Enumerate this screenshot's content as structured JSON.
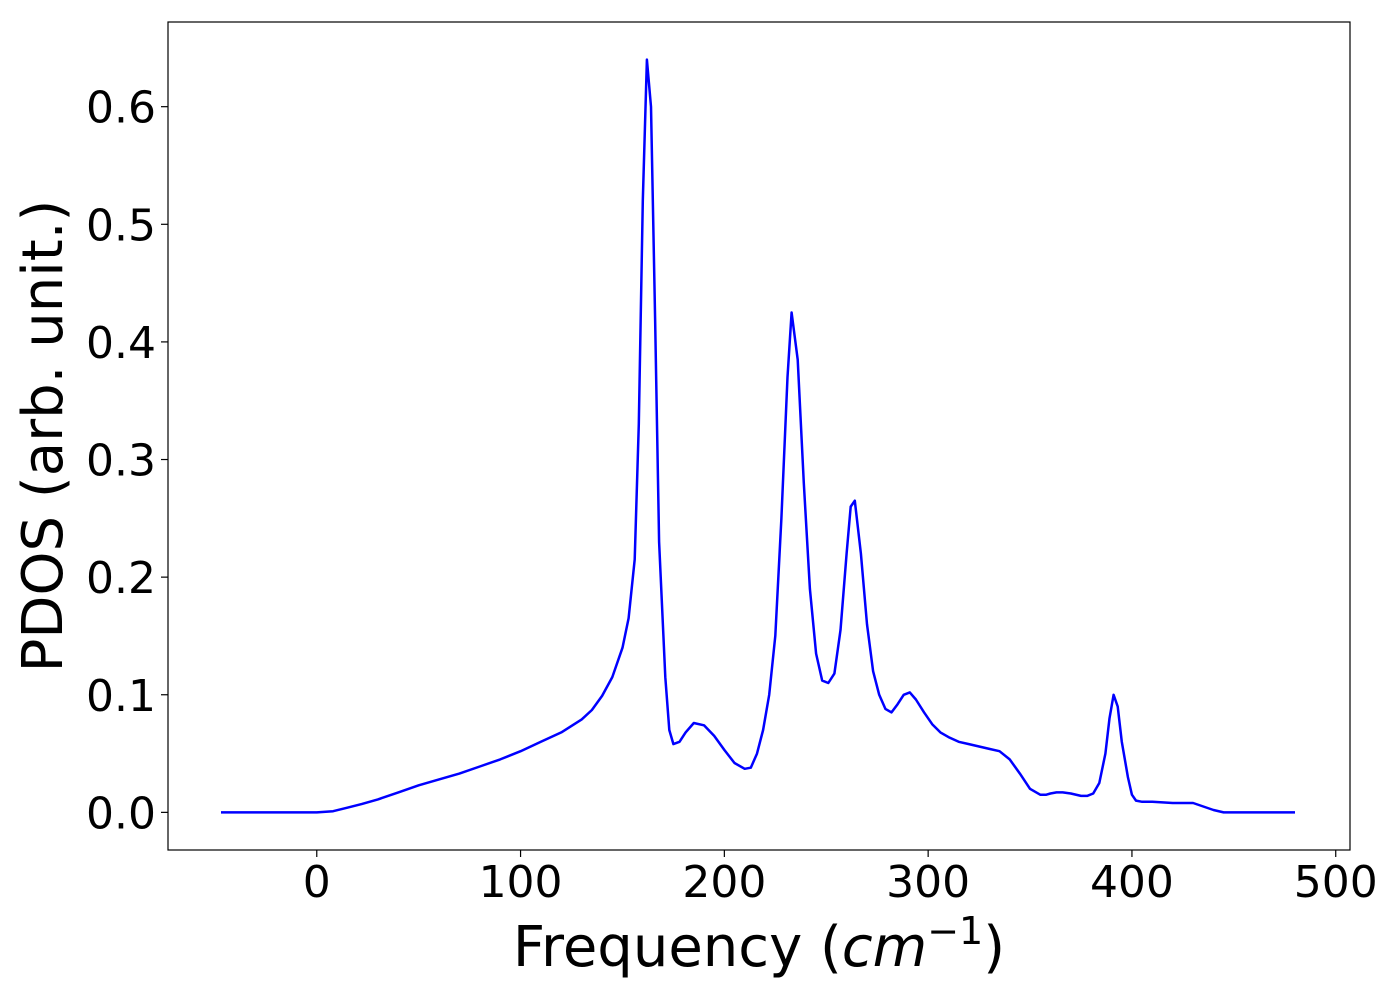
{
  "chart_data": {
    "type": "line",
    "title": "",
    "xlabel_prefix": "Frequency (",
    "xlabel_unit": "cm",
    "xlabel_exp": "−1",
    "xlabel_suffix": ")",
    "ylabel": "PDOS (arb. unit.)",
    "xlim": [
      -73,
      507
    ],
    "ylim": [
      -0.032,
      0.672
    ],
    "xticks": [
      0,
      100,
      200,
      300,
      400,
      500
    ],
    "xtick_labels": [
      "0",
      "100",
      "200",
      "300",
      "400",
      "500"
    ],
    "yticks": [
      0.0,
      0.1,
      0.2,
      0.3,
      0.4,
      0.5,
      0.6
    ],
    "ytick_labels": [
      "0.0",
      "0.1",
      "0.2",
      "0.3",
      "0.4",
      "0.5",
      "0.6"
    ],
    "grid": false,
    "series": [
      {
        "color": "#0000ff",
        "x": [
          -47,
          -20,
          0,
          8,
          15,
          22,
          30,
          40,
          50,
          60,
          70,
          80,
          90,
          100,
          110,
          120,
          130,
          135,
          140,
          145,
          150,
          153,
          156,
          158,
          160,
          162,
          164,
          166,
          168,
          171,
          173,
          175,
          178,
          181,
          185,
          190,
          195,
          200,
          205,
          210,
          213,
          216,
          219,
          222,
          225,
          228,
          231,
          233,
          236,
          239,
          242,
          245,
          248,
          251,
          254,
          257,
          260,
          262,
          264,
          267,
          270,
          273,
          276,
          279,
          282,
          285,
          288,
          291,
          294,
          298,
          302,
          306,
          310,
          315,
          320,
          325,
          330,
          335,
          340,
          345,
          350,
          355,
          358,
          360,
          363,
          366,
          370,
          375,
          378,
          381,
          384,
          387,
          389,
          391,
          393,
          395,
          398,
          400,
          402,
          405,
          410,
          420,
          430,
          435,
          440,
          445,
          460,
          480
        ],
        "y": [
          0.0,
          0.0,
          0.0,
          0.001,
          0.004,
          0.007,
          0.011,
          0.017,
          0.023,
          0.028,
          0.033,
          0.039,
          0.045,
          0.052,
          0.06,
          0.068,
          0.079,
          0.087,
          0.099,
          0.115,
          0.14,
          0.165,
          0.215,
          0.33,
          0.52,
          0.64,
          0.6,
          0.42,
          0.23,
          0.115,
          0.07,
          0.058,
          0.06,
          0.068,
          0.076,
          0.074,
          0.065,
          0.053,
          0.042,
          0.037,
          0.038,
          0.05,
          0.07,
          0.1,
          0.15,
          0.25,
          0.37,
          0.425,
          0.385,
          0.28,
          0.19,
          0.135,
          0.112,
          0.11,
          0.118,
          0.155,
          0.22,
          0.26,
          0.265,
          0.22,
          0.16,
          0.12,
          0.1,
          0.088,
          0.085,
          0.092,
          0.1,
          0.102,
          0.096,
          0.085,
          0.075,
          0.068,
          0.064,
          0.06,
          0.058,
          0.056,
          0.054,
          0.052,
          0.045,
          0.033,
          0.02,
          0.015,
          0.015,
          0.016,
          0.017,
          0.017,
          0.016,
          0.014,
          0.014,
          0.016,
          0.025,
          0.05,
          0.08,
          0.1,
          0.09,
          0.06,
          0.03,
          0.015,
          0.01,
          0.009,
          0.009,
          0.008,
          0.008,
          0.005,
          0.002,
          0.0,
          0.0,
          0.0
        ]
      }
    ]
  }
}
